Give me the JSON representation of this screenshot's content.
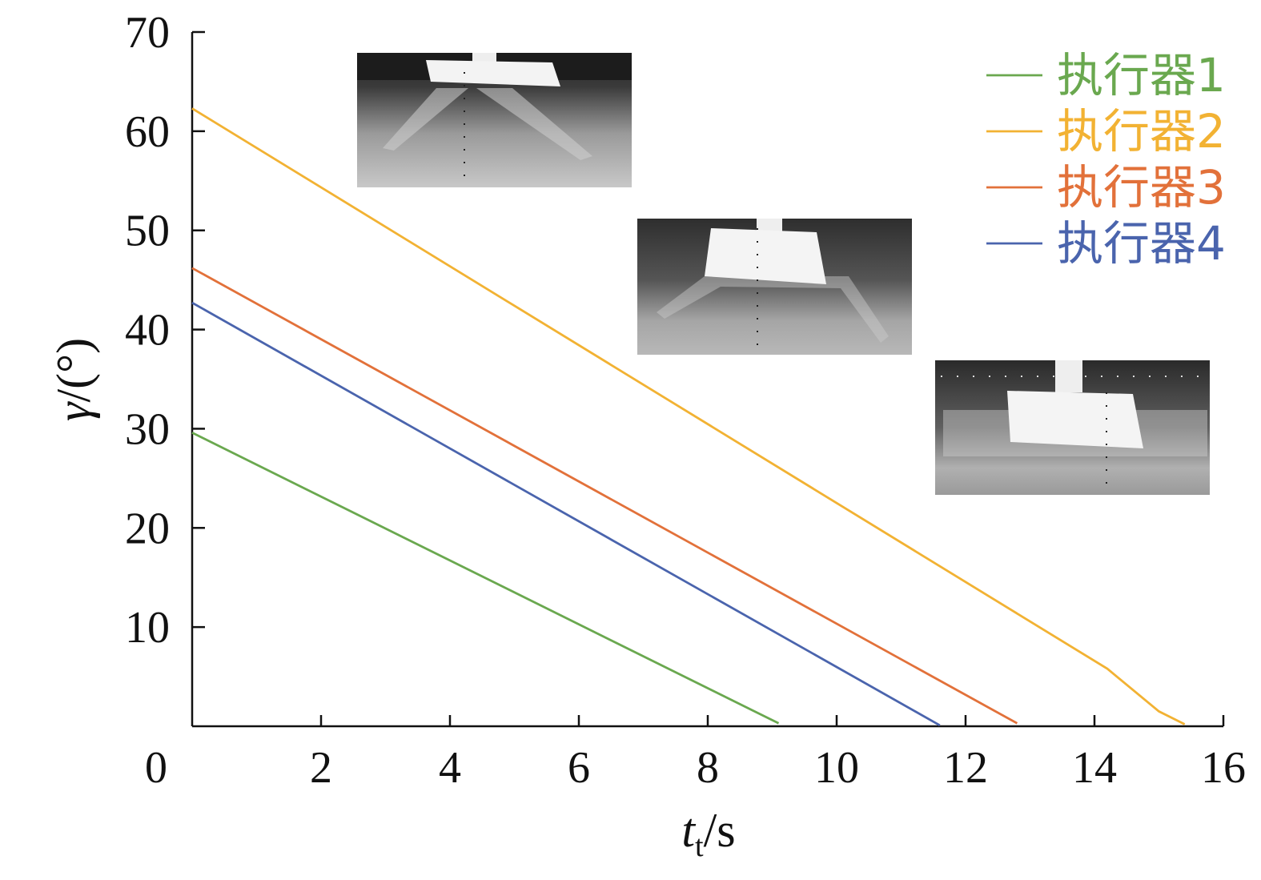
{
  "chart_data": {
    "type": "line",
    "xlabel": {
      "var": "t",
      "sub": "t",
      "unit": "/s"
    },
    "ylabel": {
      "var": "γ",
      "unit": "/(°)"
    },
    "xlim": [
      0,
      16
    ],
    "ylim": [
      0,
      70
    ],
    "x_ticks": [
      2,
      4,
      6,
      8,
      10,
      12,
      14,
      16
    ],
    "y_ticks": [
      10,
      20,
      30,
      40,
      50,
      60,
      70
    ],
    "origin_label": "0",
    "grid": false,
    "legend_position": "top-right",
    "series": [
      {
        "name": "执行器1",
        "color": "#6aa84f",
        "points": [
          [
            0,
            29.6
          ],
          [
            9.1,
            0.3
          ]
        ]
      },
      {
        "name": "执行器2",
        "color": "#f2b233",
        "points": [
          [
            0,
            62.3
          ],
          [
            14.2,
            5.8
          ],
          [
            15.0,
            1.5
          ],
          [
            15.4,
            0.2
          ]
        ]
      },
      {
        "name": "执行器3",
        "color": "#e2713a",
        "points": [
          [
            0,
            46.2
          ],
          [
            12.8,
            0.3
          ]
        ]
      },
      {
        "name": "执行器4",
        "color": "#4a64ad",
        "points": [
          [
            0,
            42.7
          ],
          [
            11.6,
            0.1
          ]
        ]
      }
    ],
    "insets": [
      {
        "name": "actuator-photo-bent",
        "desc": "spread"
      },
      {
        "name": "actuator-photo-half",
        "desc": "half"
      },
      {
        "name": "actuator-photo-flat",
        "desc": "flat"
      }
    ]
  }
}
